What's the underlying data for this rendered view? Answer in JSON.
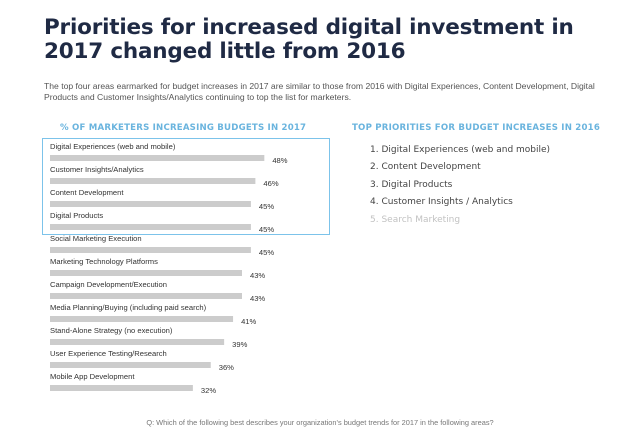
{
  "title": "Priorities for increased digital investment in 2017 changed little from 2016",
  "subtitle": "The top four areas earmarked for budget increases in 2017 are similar to those from 2016 with Digital Experiences, Content Development, Digital Products and Customer Insights/Analytics continuing to top the list for marketers.",
  "right_panel": {
    "heading": "TOP PRIORITIES FOR BUDGET INCREASES IN 2016",
    "items": [
      {
        "label": "1. Digital Experiences (web and mobile)",
        "faded": false
      },
      {
        "label": "2. Content Development",
        "faded": false
      },
      {
        "label": "3. Digital Products",
        "faded": false
      },
      {
        "label": "4. Customer Insights / Analytics",
        "faded": false
      },
      {
        "label": "5. Search Marketing",
        "faded": true
      }
    ]
  },
  "question": "Q: Which of the following best describes your organization's budget trends for 2017 in the following areas?",
  "colors": {
    "bar": "#cccccc",
    "highlight_border": "#7cc3ea",
    "heading": "#6ab4de",
    "title": "#1f2a44"
  },
  "chart_data": {
    "type": "bar",
    "orientation": "horizontal",
    "title": "% OF MARKETERS INCREASING BUDGETS IN 2017",
    "categories": [
      "Digital Experiences (web and mobile)",
      "Customer Insights/Analytics",
      "Content Development",
      "Digital Products",
      "Social Marketing Execution",
      "Marketing Technology Platforms",
      "Campaign Development/Execution",
      "Media Planning/Buying (including paid search)",
      "Stand-Alone Strategy (no execution)",
      "User Experience Testing/Research",
      "Mobile App Development"
    ],
    "values": [
      48,
      46,
      45,
      45,
      45,
      43,
      43,
      41,
      39,
      36,
      32
    ],
    "value_labels": [
      "48%",
      "46%",
      "45%",
      "45%",
      "45%",
      "43%",
      "43%",
      "41%",
      "39%",
      "36%",
      "32%"
    ],
    "highlighted_top": 4
  }
}
